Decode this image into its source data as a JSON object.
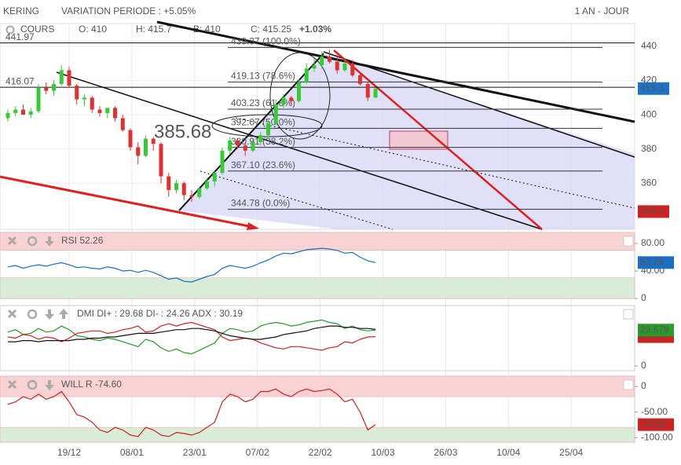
{
  "header": {
    "symbol": "KERING",
    "variation": "VARIATION PERIODE : +5.05%",
    "period": "1 AN - JOUR"
  },
  "chart_data": [
    {
      "type": "candlestick",
      "summary": {
        "name": "COURS",
        "open": {
          "value": 410,
          "label": "O: 410"
        },
        "high": {
          "value": 415.7,
          "label": "H: 415.7"
        },
        "low": {
          "value": 410,
          "label": "B: 410"
        },
        "close": {
          "value": 415.25,
          "label": "C: 415.25"
        },
        "change": "+1.03%"
      },
      "xtick_labels": [
        "19/12",
        "08/01",
        "23/01",
        "07/02",
        "22/02",
        "10/03",
        "26/03",
        "10/04",
        "25/04"
      ],
      "open": [
        398,
        401,
        403,
        400,
        402,
        416,
        414,
        418,
        426,
        417,
        409,
        410,
        403,
        401,
        404,
        398,
        391,
        381,
        376,
        386,
        383,
        364,
        356,
        360,
        353,
        352,
        357,
        361,
        366,
        379,
        385,
        382,
        379,
        384,
        388,
        395,
        406,
        410,
        408,
        419,
        427,
        429,
        434,
        431,
        426,
        430,
        423,
        418,
        410
      ],
      "high": [
        403,
        405,
        406,
        404,
        418,
        419,
        420,
        429,
        428,
        418,
        412,
        411,
        405,
        404,
        405,
        400,
        392,
        384,
        388,
        387,
        384,
        366,
        362,
        361,
        356,
        358,
        363,
        367,
        381,
        387,
        386,
        384,
        386,
        390,
        397,
        409,
        412,
        411,
        421,
        430,
        433,
        437,
        438,
        435,
        432,
        432,
        425,
        419,
        415.7
      ],
      "low": [
        396,
        399,
        400,
        398,
        401,
        412,
        411,
        417,
        416,
        406,
        405,
        401,
        399,
        398,
        396,
        390,
        379,
        371,
        375,
        379,
        360,
        352,
        354,
        350,
        349,
        351,
        356,
        358,
        365,
        377,
        380,
        376,
        378,
        382,
        387,
        394,
        404,
        405,
        407,
        418,
        425,
        427,
        430,
        424,
        425,
        422,
        417,
        408,
        410
      ],
      "close": [
        401,
        403,
        400,
        402,
        416,
        414,
        418,
        426,
        417,
        409,
        410,
        403,
        401,
        404,
        398,
        391,
        381,
        376,
        386,
        383,
        364,
        356,
        360,
        353,
        352,
        357,
        361,
        366,
        379,
        385,
        382,
        379,
        384,
        388,
        395,
        406,
        410,
        408,
        419,
        427,
        429,
        434,
        431,
        426,
        430,
        423,
        418,
        410,
        415.25
      ],
      "up_color": "#33cc33",
      "down_color": "#e03030",
      "ylim": [
        333,
        453.3
      ],
      "yticks": [
        360,
        380,
        400,
        420,
        440
      ],
      "grid": true,
      "price_lines": [
        441.97,
        416.07
      ],
      "fib_levels": [
        {
          "value": 439.37,
          "label": "439.37 (100.0%)"
        },
        {
          "value": 419.13,
          "label": "419.13 (78.6%)"
        },
        {
          "value": 403.23,
          "label": "403.23 (61.8%)"
        },
        {
          "value": 392.07,
          "label": "392.07 (50.0%)"
        },
        {
          "value": 380.91,
          "label": "380.91 (38.2%)"
        },
        {
          "value": 367.1,
          "label": "367.10 (23.6%)"
        },
        {
          "value": 344.78,
          "label": "344.78 (0.0%)"
        }
      ],
      "annotation": 385.68,
      "badges": [
        {
          "value": 415.3,
          "color": "#1a73c8"
        },
        {
          "value": 343.4,
          "color": "#d02020"
        }
      ]
    },
    {
      "type": "line",
      "title": "RSI 52.26",
      "ylim": [
        0,
        96
      ],
      "yticks": [
        {
          "value": 80,
          "label": "80.00"
        },
        {
          "value": 40,
          "label": "40.00"
        },
        0
      ],
      "zones": [
        {
          "from": 70,
          "to": 96,
          "color": "#f9d3d3"
        },
        {
          "from": 0,
          "to": 30,
          "color": "#d8ecd8"
        }
      ],
      "series": [
        {
          "name": "RSI",
          "color": "#1a6fc4",
          "values": [
            46,
            48,
            44,
            47,
            49,
            47,
            50,
            52,
            49,
            45,
            46,
            44,
            43,
            46,
            44,
            40,
            41,
            38,
            41,
            38,
            33,
            28,
            30,
            25,
            24,
            28,
            32,
            35,
            44,
            48,
            46,
            44,
            47,
            52,
            56,
            62,
            66,
            65,
            68,
            71,
            72,
            73,
            72,
            70,
            66,
            67,
            60,
            55,
            52.26
          ]
        }
      ]
    },
    {
      "type": "line",
      "title": "DMI DI+ : 29.68 DI- : 24.26 ADX : 30.19",
      "ylim": [
        -4,
        50
      ],
      "yticks": [
        0
      ],
      "series": [
        {
          "name": "DI+",
          "color": "#2a9a2a",
          "values": [
            28,
            30,
            26,
            27,
            31,
            28,
            29,
            33,
            30,
            25,
            24,
            22,
            21,
            23,
            22,
            20,
            18,
            16,
            22,
            20,
            15,
            12,
            14,
            11,
            10,
            13,
            16,
            19,
            27,
            31,
            30,
            28,
            29,
            33,
            35,
            36,
            35,
            33,
            34,
            36,
            37,
            38,
            36,
            35,
            31,
            33,
            30,
            29,
            29.679
          ]
        },
        {
          "name": "DI-",
          "color": "#cc2222",
          "values": [
            24,
            23,
            26,
            25,
            22,
            24,
            23,
            20,
            23,
            27,
            28,
            29,
            29,
            27,
            28,
            30,
            31,
            33,
            28,
            29,
            33,
            35,
            33,
            35,
            36,
            34,
            32,
            30,
            24,
            21,
            22,
            23,
            22,
            19,
            17,
            15,
            14,
            16,
            16,
            15,
            14,
            13,
            15,
            16,
            20,
            19,
            22,
            24,
            24.257
          ]
        },
        {
          "name": "ADX",
          "color": "#111111",
          "values": [
            20,
            20,
            21,
            21,
            20,
            21,
            21,
            21,
            21,
            22,
            22,
            23,
            23,
            24,
            24,
            25,
            26,
            27,
            27,
            27,
            28,
            29,
            30,
            30,
            31,
            31,
            30,
            29,
            27,
            25,
            24,
            23,
            22,
            22,
            23,
            24,
            26,
            27,
            28,
            29,
            31,
            32,
            33,
            33,
            32,
            32,
            31,
            31,
            30.19
          ]
        }
      ]
    },
    {
      "type": "line",
      "title": "WILL R -74.60",
      "ylim": [
        -109,
        20
      ],
      "yticks": [
        0,
        {
          "value": -50,
          "label": "-50.00"
        },
        {
          "value": -100,
          "label": "-100.00"
        }
      ],
      "zones": [
        {
          "from": -20,
          "to": 20,
          "color": "#f9d3d3"
        },
        {
          "from": -109,
          "to": -80,
          "color": "#d8ecd8"
        }
      ],
      "series": [
        {
          "name": "WILL R",
          "color": "#cc2222",
          "values": [
            -35,
            -30,
            -20,
            -25,
            -15,
            -25,
            -20,
            -10,
            -30,
            -55,
            -60,
            -70,
            -85,
            -90,
            -80,
            -85,
            -95,
            -98,
            -80,
            -85,
            -95,
            -98,
            -90,
            -92,
            -95,
            -90,
            -80,
            -70,
            -30,
            -15,
            -20,
            -30,
            -25,
            -10,
            -10,
            -5,
            -15,
            -20,
            -10,
            -5,
            -10,
            -8,
            -5,
            -15,
            -30,
            -25,
            -50,
            -85,
            -74.6
          ]
        }
      ],
      "badge": {
        "value": -74.6,
        "label": "-74.60"
      }
    }
  ]
}
